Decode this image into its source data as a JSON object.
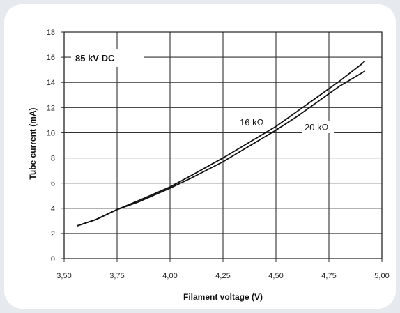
{
  "chart_data": {
    "type": "line",
    "xlabel": "Filament voltage (V)",
    "ylabel": "Tube current (mA)",
    "xlim": [
      3.5,
      5.0
    ],
    "ylim": [
      0,
      18
    ],
    "xticks": [
      "3,50",
      "3,75",
      "4,00",
      "4,25",
      "4,50",
      "4,75",
      "5,00"
    ],
    "yticks": [
      "0",
      "2",
      "4",
      "6",
      "8",
      "10",
      "12",
      "14",
      "16",
      "18"
    ],
    "grid": true,
    "annotation": "85 kV DC",
    "series": [
      {
        "name": "16 kΩ",
        "x": [
          3.56,
          3.65,
          3.75,
          3.85,
          4.0,
          4.1,
          4.25,
          4.4,
          4.5,
          4.6,
          4.7,
          4.8,
          4.9,
          4.92
        ],
        "y": [
          2.6,
          3.1,
          3.9,
          4.6,
          5.7,
          6.6,
          8.0,
          9.5,
          10.5,
          11.7,
          12.9,
          14.1,
          15.4,
          15.7
        ]
      },
      {
        "name": "20 kΩ",
        "x": [
          3.56,
          3.65,
          3.75,
          3.85,
          4.0,
          4.1,
          4.25,
          4.4,
          4.5,
          4.6,
          4.7,
          4.8,
          4.9,
          4.92
        ],
        "y": [
          2.6,
          3.1,
          3.9,
          4.5,
          5.6,
          6.4,
          7.7,
          9.2,
          10.2,
          11.3,
          12.5,
          13.7,
          14.7,
          14.9
        ]
      }
    ]
  }
}
